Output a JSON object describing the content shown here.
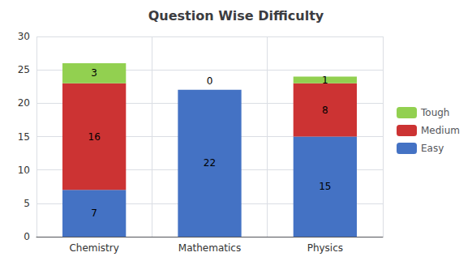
{
  "chart_data": {
    "type": "bar",
    "title": "Question Wise Difficulty",
    "categories": [
      "Chemistry",
      "Mathematics",
      "Physics"
    ],
    "stacked": true,
    "data_labels": true,
    "series": [
      {
        "name": "Easy",
        "color": "#4472C4",
        "values": [
          7,
          22,
          15
        ]
      },
      {
        "name": "Medium",
        "color": "#CC3333",
        "values": [
          16,
          0,
          8
        ],
        "value_labels": [
          "16",
          null,
          "8"
        ]
      },
      {
        "name": "Tough",
        "color": "#92D050",
        "values": [
          3,
          0,
          1
        ]
      }
    ],
    "ylim": [
      0,
      30
    ],
    "yticks": [
      0,
      5,
      10,
      15,
      20,
      25,
      30
    ],
    "grid": true,
    "legend": "right"
  }
}
